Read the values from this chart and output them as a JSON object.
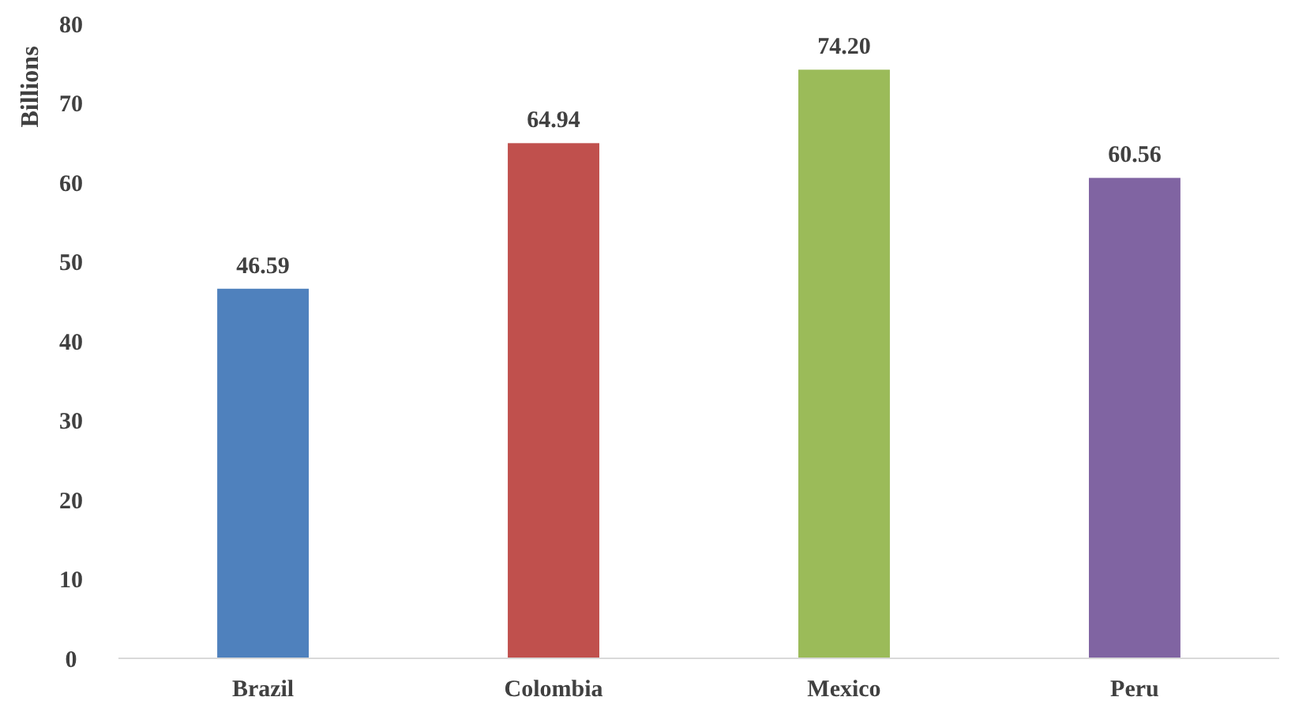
{
  "chart_data": {
    "type": "bar",
    "ylabel": "Billions",
    "categories": [
      "Brazil",
      "Colombia",
      "Mexico",
      "Peru"
    ],
    "values": [
      46.59,
      64.94,
      74.2,
      60.56
    ],
    "colors": [
      "#4f81bd",
      "#c0504d",
      "#9bbb59",
      "#8064a2"
    ],
    "value_labels": [
      "46.59",
      "64.94",
      "74.20",
      "60.56"
    ],
    "ylim": [
      0,
      80
    ],
    "yticks": [
      0,
      10,
      20,
      30,
      40,
      50,
      60,
      70,
      80
    ],
    "grid": false
  }
}
